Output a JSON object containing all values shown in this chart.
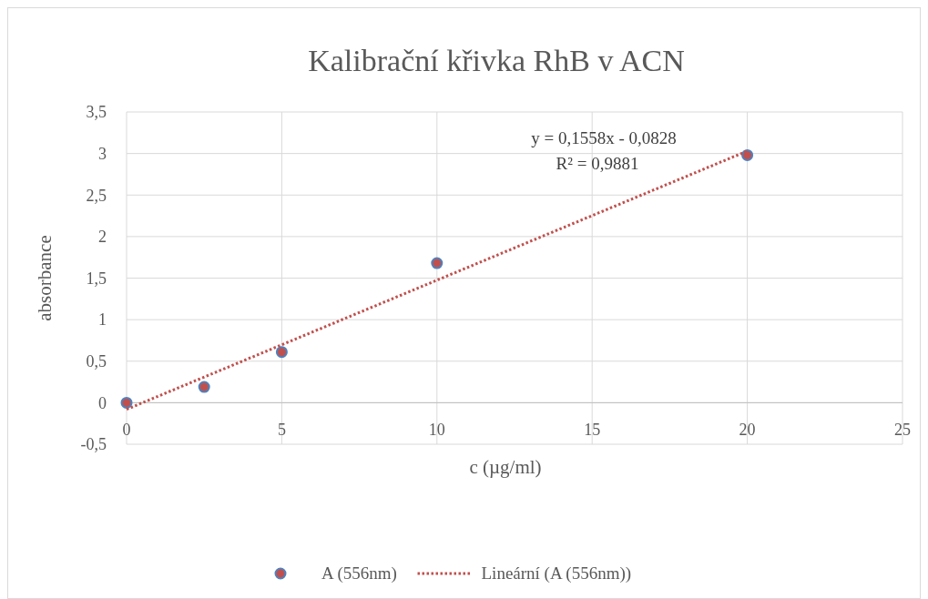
{
  "chart_data": {
    "type": "scatter",
    "title": "Kalibrační křivka RhB v ACN",
    "xlabel": "c (µg/ml)",
    "ylabel": "absorbance",
    "xlim": [
      0,
      25
    ],
    "xticks": [
      0,
      5,
      10,
      15,
      20,
      25
    ],
    "ylim": [
      -0.5,
      3.5
    ],
    "yticks": [
      {
        "value": -0.5,
        "label": "-0,5"
      },
      0,
      {
        "value": 0.5,
        "label": "0,5"
      },
      1,
      {
        "value": 1.5,
        "label": "1,5"
      },
      2,
      {
        "value": 2.5,
        "label": "2,5"
      },
      3,
      {
        "value": 3.5,
        "label": "3,5"
      }
    ],
    "grid": true,
    "legend": "bottom",
    "marker": "circle",
    "series": [
      {
        "name": "A (556nm)",
        "color": "#c0504d",
        "x": [
          0,
          2.5,
          5,
          10,
          20
        ],
        "values": [
          0,
          0.19,
          0.61,
          1.68,
          2.98
        ]
      },
      {
        "name": "Lineární (A (556nm))",
        "type": "line",
        "color": "#c0504d",
        "line_style": "dotted",
        "marker": "none",
        "x": [
          0,
          20
        ],
        "values": [
          -0.08,
          3.03
        ]
      }
    ],
    "annotations": [
      "y = 0,1558x - 0,0828",
      "R² = 0,9881"
    ]
  }
}
